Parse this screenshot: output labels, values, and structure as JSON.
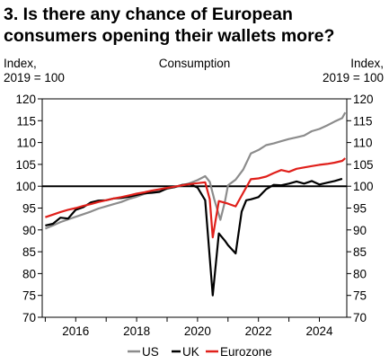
{
  "chart_data": {
    "type": "line",
    "title_lines": [
      "3. Is there any chance of European",
      "consumers opening their wallets more?"
    ],
    "subtitle": "Consumption",
    "ylabel_left_lines": [
      "Index,",
      "2019 = 100"
    ],
    "ylabel_right_lines": [
      "Index,",
      "2019 = 100"
    ],
    "xlim": [
      2014.9,
      2024.9
    ],
    "ylim": [
      70,
      120
    ],
    "x_ticks": [
      2016,
      2018,
      2020,
      2022,
      2024
    ],
    "x_tick_labels": [
      "2016",
      "2018",
      "2020",
      "2022",
      "2024"
    ],
    "y_ticks": [
      70,
      75,
      80,
      85,
      90,
      95,
      100,
      105,
      110,
      115,
      120
    ],
    "y_tick_labels": [
      "70",
      "75",
      "80",
      "85",
      "90",
      "95",
      "100",
      "105",
      "110",
      "115",
      "120"
    ],
    "reference_line": 100,
    "grid": false,
    "legend_position": "bottom-center",
    "series": [
      {
        "name": "US",
        "color": "#8c8c8c",
        "points": [
          [
            2015.0,
            90.3
          ],
          [
            2015.25,
            91.0
          ],
          [
            2015.5,
            91.8
          ],
          [
            2015.75,
            92.4
          ],
          [
            2016.0,
            93.0
          ],
          [
            2016.25,
            93.6
          ],
          [
            2016.5,
            94.2
          ],
          [
            2016.75,
            94.9
          ],
          [
            2017.0,
            95.4
          ],
          [
            2017.25,
            95.9
          ],
          [
            2017.5,
            96.4
          ],
          [
            2017.75,
            97.1
          ],
          [
            2018.0,
            97.6
          ],
          [
            2018.25,
            98.2
          ],
          [
            2018.5,
            98.7
          ],
          [
            2018.75,
            99.0
          ],
          [
            2019.0,
            99.4
          ],
          [
            2019.25,
            99.8
          ],
          [
            2019.5,
            100.2
          ],
          [
            2019.75,
            100.7
          ],
          [
            2020.0,
            101.4
          ],
          [
            2020.25,
            102.3
          ],
          [
            2020.4,
            101.0
          ],
          [
            2020.55,
            97.0
          ],
          [
            2020.75,
            92.3
          ],
          [
            2020.9,
            96.5
          ],
          [
            2021.0,
            100.2
          ],
          [
            2021.25,
            101.5
          ],
          [
            2021.5,
            103.8
          ],
          [
            2021.75,
            107.5
          ],
          [
            2022.0,
            108.3
          ],
          [
            2022.25,
            109.4
          ],
          [
            2022.5,
            109.8
          ],
          [
            2022.75,
            110.3
          ],
          [
            2023.0,
            110.8
          ],
          [
            2023.25,
            111.2
          ],
          [
            2023.5,
            111.6
          ],
          [
            2023.75,
            112.6
          ],
          [
            2024.0,
            113.1
          ],
          [
            2024.25,
            113.9
          ],
          [
            2024.5,
            114.8
          ],
          [
            2024.75,
            115.6
          ],
          [
            2024.85,
            116.9
          ]
        ]
      },
      {
        "name": "UK",
        "color": "#000000",
        "points": [
          [
            2015.0,
            91.0
          ],
          [
            2015.25,
            91.4
          ],
          [
            2015.5,
            92.8
          ],
          [
            2015.75,
            92.6
          ],
          [
            2016.0,
            94.6
          ],
          [
            2016.25,
            95.2
          ],
          [
            2016.5,
            96.3
          ],
          [
            2016.75,
            96.7
          ],
          [
            2017.0,
            96.8
          ],
          [
            2017.25,
            97.2
          ],
          [
            2017.5,
            97.3
          ],
          [
            2017.75,
            97.6
          ],
          [
            2018.0,
            98.0
          ],
          [
            2018.25,
            98.4
          ],
          [
            2018.5,
            98.5
          ],
          [
            2018.75,
            98.7
          ],
          [
            2019.0,
            99.5
          ],
          [
            2019.25,
            99.8
          ],
          [
            2019.5,
            100.3
          ],
          [
            2019.75,
            100.5
          ],
          [
            2020.0,
            99.7
          ],
          [
            2020.25,
            96.8
          ],
          [
            2020.5,
            75.0
          ],
          [
            2020.7,
            89.2
          ],
          [
            2020.9,
            87.5
          ],
          [
            2021.0,
            86.5
          ],
          [
            2021.25,
            84.6
          ],
          [
            2021.45,
            94.2
          ],
          [
            2021.6,
            96.8
          ],
          [
            2021.75,
            97.0
          ],
          [
            2022.0,
            97.5
          ],
          [
            2022.25,
            99.3
          ],
          [
            2022.5,
            100.3
          ],
          [
            2022.75,
            100.2
          ],
          [
            2023.0,
            100.6
          ],
          [
            2023.25,
            101.1
          ],
          [
            2023.5,
            100.6
          ],
          [
            2023.75,
            101.2
          ],
          [
            2024.0,
            100.4
          ],
          [
            2024.25,
            100.8
          ],
          [
            2024.5,
            101.2
          ],
          [
            2024.75,
            101.7
          ]
        ]
      },
      {
        "name": "Eurozone",
        "color": "#e0201b",
        "points": [
          [
            2015.0,
            92.9
          ],
          [
            2015.25,
            93.5
          ],
          [
            2015.5,
            94.1
          ],
          [
            2015.75,
            94.6
          ],
          [
            2016.0,
            95.0
          ],
          [
            2016.25,
            95.5
          ],
          [
            2016.5,
            95.9
          ],
          [
            2016.75,
            96.4
          ],
          [
            2017.0,
            96.8
          ],
          [
            2017.25,
            97.2
          ],
          [
            2017.5,
            97.5
          ],
          [
            2017.75,
            97.9
          ],
          [
            2018.0,
            98.3
          ],
          [
            2018.25,
            98.6
          ],
          [
            2018.5,
            99.0
          ],
          [
            2018.75,
            99.3
          ],
          [
            2019.0,
            99.6
          ],
          [
            2019.25,
            99.9
          ],
          [
            2019.5,
            100.2
          ],
          [
            2019.75,
            100.5
          ],
          [
            2020.0,
            100.7
          ],
          [
            2020.25,
            100.9
          ],
          [
            2020.4,
            97.0
          ],
          [
            2020.5,
            88.3
          ],
          [
            2020.7,
            96.6
          ],
          [
            2021.0,
            96.0
          ],
          [
            2021.25,
            95.4
          ],
          [
            2021.5,
            98.5
          ],
          [
            2021.75,
            101.6
          ],
          [
            2022.0,
            101.8
          ],
          [
            2022.25,
            102.2
          ],
          [
            2022.5,
            103.0
          ],
          [
            2022.75,
            103.7
          ],
          [
            2023.0,
            103.3
          ],
          [
            2023.25,
            104.0
          ],
          [
            2023.5,
            104.3
          ],
          [
            2023.75,
            104.6
          ],
          [
            2024.0,
            104.9
          ],
          [
            2024.25,
            105.1
          ],
          [
            2024.5,
            105.4
          ],
          [
            2024.75,
            105.8
          ],
          [
            2024.85,
            106.4
          ]
        ]
      }
    ]
  }
}
